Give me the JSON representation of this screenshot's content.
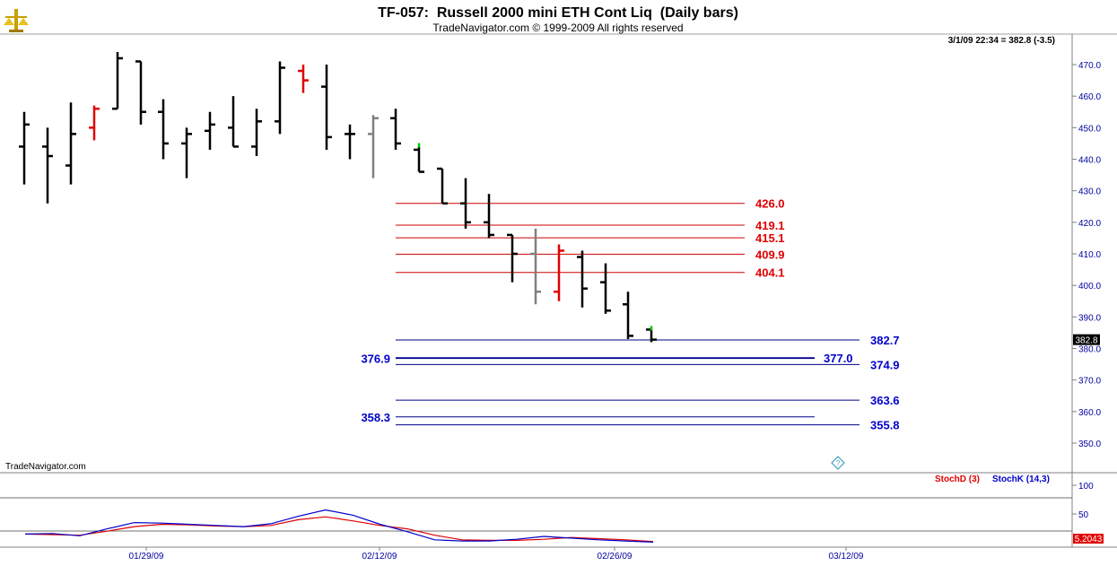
{
  "header": {
    "title": "TF-057:  Russell 2000 mini ETH Cont Liq  (Daily bars)",
    "subtitle": "TradeNavigator.com © 1999-2009 All rights reserved",
    "last_price_info": "3/1/09 22:34 = 382.8 (-3.5)",
    "watermark": "TradeNavigator.com",
    "logo_icon": "scale-balance-icon"
  },
  "colors": {
    "up_bar": "#000000",
    "red_bar": "#e00000",
    "gray_bar": "#808080",
    "green_tick": "#00cc00",
    "resistance_line": "#cc0000",
    "support_line": "#00008b",
    "stoch_d": "#e00000",
    "stoch_k": "#0000cc",
    "axis_text": "#0000a0"
  },
  "chart_data": [
    {
      "type": "ohlc",
      "title": "TF-057:  Russell 2000 mini ETH Cont Liq  (Daily bars)",
      "ylim": [
        343,
        476
      ],
      "y_ticks": [
        "470.0",
        "460.0",
        "450.0",
        "440.0",
        "430.0",
        "420.0",
        "410.0",
        "400.0",
        "390.0",
        "380.0",
        "370.0",
        "360.0",
        "350.0"
      ],
      "x_tick_labels": [
        "01/29/09",
        "02/12/09",
        "02/26/09",
        "03/12/09"
      ],
      "current_price_label": "382.8",
      "bars": [
        {
          "o": 444,
          "h": 455,
          "l": 432,
          "c": 451,
          "color": "black"
        },
        {
          "o": 444,
          "h": 450,
          "l": 426,
          "c": 441,
          "color": "black"
        },
        {
          "o": 438,
          "h": 458,
          "l": 432,
          "c": 448,
          "color": "black"
        },
        {
          "o": 450,
          "h": 457,
          "l": 446,
          "c": 456,
          "color": "red"
        },
        {
          "o": 456,
          "h": 474,
          "l": 456,
          "c": 472,
          "color": "black"
        },
        {
          "o": 471,
          "h": 471,
          "l": 451,
          "c": 455,
          "color": "black"
        },
        {
          "o": 455,
          "h": 459,
          "l": 440,
          "c": 445,
          "color": "black"
        },
        {
          "o": 445,
          "h": 450,
          "l": 434,
          "c": 448,
          "color": "black"
        },
        {
          "o": 449,
          "h": 455,
          "l": 443,
          "c": 451,
          "color": "black"
        },
        {
          "o": 450,
          "h": 460,
          "l": 444,
          "c": 444,
          "color": "black"
        },
        {
          "o": 444,
          "h": 456,
          "l": 441,
          "c": 452,
          "color": "black"
        },
        {
          "o": 452,
          "h": 471,
          "l": 448,
          "c": 469,
          "color": "black"
        },
        {
          "o": 468,
          "h": 470,
          "l": 461,
          "c": 465,
          "color": "red"
        },
        {
          "o": 463,
          "h": 470,
          "l": 443,
          "c": 447,
          "color": "black"
        },
        {
          "o": 448,
          "h": 451,
          "l": 440,
          "c": 448,
          "color": "black"
        },
        {
          "o": 448,
          "h": 454,
          "l": 434,
          "c": 453,
          "color": "gray"
        },
        {
          "o": 453,
          "h": 456,
          "l": 443,
          "c": 445,
          "color": "black"
        },
        {
          "o": 443,
          "h": 444,
          "l": 436,
          "c": 436,
          "color": "black"
        },
        {
          "o": 437,
          "h": 437,
          "l": 426,
          "c": 426,
          "color": "black"
        },
        {
          "o": 426,
          "h": 434,
          "l": 418,
          "c": 420,
          "color": "black"
        },
        {
          "o": 420,
          "h": 429,
          "l": 415,
          "c": 416,
          "color": "black"
        },
        {
          "o": 416,
          "h": 416,
          "l": 401,
          "c": 410,
          "color": "black"
        },
        {
          "o": 410,
          "h": 418,
          "l": 394,
          "c": 398,
          "color": "gray"
        },
        {
          "o": 398,
          "h": 413,
          "l": 395,
          "c": 411,
          "color": "red"
        },
        {
          "o": 409,
          "h": 411,
          "l": 393,
          "c": 399,
          "color": "black"
        },
        {
          "o": 401,
          "h": 407,
          "l": 391,
          "c": 392,
          "color": "black"
        },
        {
          "o": 394,
          "h": 398,
          "l": 383,
          "c": 384,
          "color": "black"
        },
        {
          "o": 386,
          "h": 386,
          "l": 382,
          "c": 382.8,
          "color": "black"
        }
      ],
      "levels": [
        {
          "value": 426.0,
          "label": "426.0",
          "color": "red",
          "label_side": "right"
        },
        {
          "value": 419.1,
          "label": "419.1",
          "color": "red",
          "label_side": "right"
        },
        {
          "value": 415.1,
          "label": "415.1",
          "color": "red",
          "label_side": "right"
        },
        {
          "value": 409.9,
          "label": "409.9",
          "color": "red",
          "label_side": "right"
        },
        {
          "value": 404.1,
          "label": "404.1",
          "color": "red",
          "label_side": "right"
        },
        {
          "value": 382.7,
          "label": "382.7",
          "color": "blue",
          "label_side": "right"
        },
        {
          "value": 377.0,
          "label": "377.0",
          "color": "blue",
          "label_side": "right-inner"
        },
        {
          "value": 376.9,
          "label": "376.9",
          "color": "blue",
          "label_side": "left"
        },
        {
          "value": 374.9,
          "label": "374.9",
          "color": "blue",
          "label_side": "right"
        },
        {
          "value": 363.6,
          "label": "363.6",
          "color": "blue",
          "label_side": "right"
        },
        {
          "value": 358.3,
          "label": "358.3",
          "color": "blue",
          "label_side": "left"
        },
        {
          "value": 355.8,
          "label": "355.8",
          "color": "blue",
          "label_side": "right"
        }
      ]
    },
    {
      "type": "line",
      "title": "",
      "ylim": [
        0,
        130
      ],
      "y_ticks": [
        "100",
        "50"
      ],
      "current_value_label": "5.2043",
      "series": [
        {
          "name": "StochD (3)",
          "values": [
            15,
            14,
            13,
            20,
            28,
            32,
            31,
            29,
            28,
            30,
            40,
            45,
            38,
            30,
            24,
            13,
            5,
            4,
            4,
            6,
            9,
            7,
            5,
            2
          ]
        },
        {
          "name": "StochK (14,3)",
          "values": [
            15,
            16,
            12,
            24,
            35,
            34,
            32,
            30,
            28,
            33,
            46,
            57,
            48,
            32,
            19,
            5,
            3,
            3,
            6,
            11,
            8,
            5,
            3,
            1
          ]
        }
      ]
    }
  ]
}
